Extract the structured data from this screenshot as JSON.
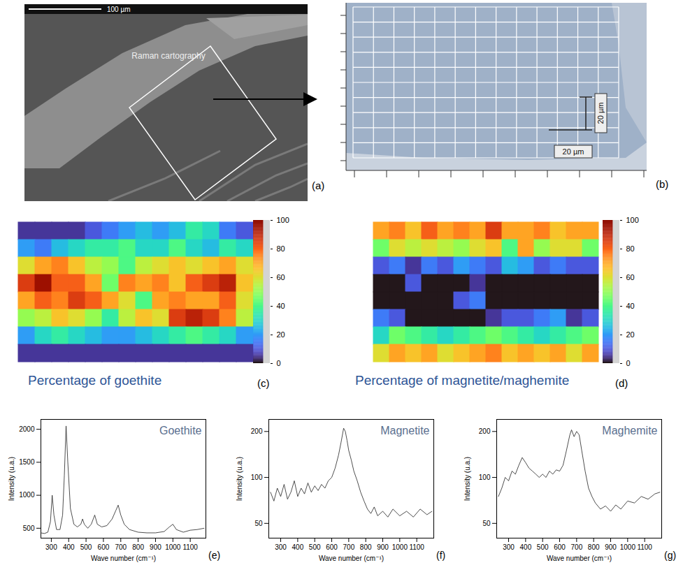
{
  "images": [
    {
      "panel_label": "(a)",
      "scale_bar": "100 µm",
      "annotation": "Raman cartography"
    },
    {
      "panel_label": "(b)",
      "scale_bars": [
        "20 µm",
        "20 µm"
      ]
    }
  ],
  "chart_data": [
    {
      "type": "heatmap",
      "title": "Percentage of goethite",
      "panel_label": "(c)",
      "tick_labels": false,
      "cells": [
        [
          5,
          5,
          5,
          5,
          10,
          15,
          20,
          25,
          20,
          25,
          35,
          30,
          15,
          10
        ],
        [
          20,
          15,
          25,
          30,
          35,
          35,
          40,
          30,
          30,
          40,
          30,
          25,
          35,
          30
        ],
        [
          60,
          70,
          75,
          65,
          55,
          50,
          40,
          55,
          60,
          65,
          60,
          65,
          70,
          60
        ],
        [
          85,
          95,
          80,
          80,
          70,
          45,
          75,
          70,
          75,
          65,
          80,
          85,
          90,
          65
        ],
        [
          70,
          80,
          75,
          85,
          80,
          70,
          60,
          40,
          70,
          75,
          70,
          70,
          80,
          60
        ],
        [
          50,
          55,
          65,
          60,
          50,
          35,
          55,
          65,
          60,
          85,
          90,
          85,
          75,
          55
        ],
        [
          20,
          30,
          35,
          30,
          25,
          20,
          20,
          25,
          30,
          35,
          40,
          35,
          30,
          20
        ],
        [
          5,
          5,
          5,
          5,
          5,
          5,
          5,
          5,
          5,
          5,
          5,
          5,
          5,
          5
        ]
      ],
      "colorbar": {
        "range": [
          0,
          100
        ],
        "ticks": [
          0,
          20,
          40,
          60,
          80,
          100
        ]
      }
    },
    {
      "type": "heatmap",
      "title": "Percentage of magnetite/maghemite",
      "panel_label": "(d)",
      "tick_labels": false,
      "cells": [
        [
          70,
          75,
          65,
          80,
          70,
          75,
          70,
          85,
          70,
          70,
          75,
          65,
          70,
          70
        ],
        [
          45,
          60,
          55,
          60,
          55,
          50,
          60,
          65,
          40,
          70,
          50,
          60,
          60,
          45
        ],
        [
          10,
          15,
          5,
          15,
          10,
          20,
          15,
          10,
          25,
          20,
          10,
          15,
          10,
          10
        ],
        [
          0,
          0,
          10,
          0,
          0,
          0,
          5,
          0,
          0,
          0,
          0,
          0,
          0,
          0
        ],
        [
          0,
          0,
          0,
          0,
          0,
          10,
          15,
          0,
          0,
          0,
          0,
          0,
          0,
          0
        ],
        [
          15,
          10,
          0,
          0,
          0,
          0,
          0,
          5,
          10,
          10,
          15,
          20,
          5,
          10
        ],
        [
          30,
          45,
          40,
          35,
          30,
          35,
          40,
          45,
          40,
          35,
          30,
          35,
          40,
          45
        ],
        [
          60,
          70,
          65,
          70,
          60,
          65,
          70,
          75,
          65,
          70,
          65,
          70,
          60,
          70
        ]
      ],
      "colorbar": {
        "range": [
          0,
          100
        ],
        "ticks": [
          0,
          20,
          40,
          60,
          80,
          100
        ]
      }
    },
    {
      "type": "line",
      "title": "Goethite",
      "panel_label": "(e)",
      "color": "#222222",
      "xlabel": "Wave number (cm⁻¹)",
      "ylabel": "Intensity (u.a.)",
      "xlim": [
        240,
        1190
      ],
      "xticks": [
        300,
        400,
        500,
        600,
        700,
        800,
        900,
        1000,
        1100
      ],
      "ylim": [
        350,
        2150
      ],
      "yticks": [
        500,
        1000,
        1500,
        2000
      ],
      "x": [
        240,
        260,
        280,
        295,
        305,
        315,
        330,
        350,
        365,
        375,
        385,
        395,
        410,
        430,
        450,
        470,
        480,
        490,
        510,
        530,
        550,
        565,
        590,
        620,
        650,
        670,
        685,
        700,
        720,
        750,
        800,
        850,
        900,
        950,
        980,
        1000,
        1020,
        1060,
        1100,
        1140,
        1180
      ],
      "values": [
        430,
        420,
        440,
        600,
        1000,
        700,
        480,
        480,
        700,
        1300,
        2050,
        1500,
        800,
        560,
        520,
        560,
        640,
        560,
        500,
        560,
        700,
        560,
        520,
        540,
        640,
        760,
        850,
        700,
        560,
        480,
        440,
        430,
        430,
        450,
        520,
        560,
        480,
        440,
        470,
        480,
        500
      ]
    },
    {
      "type": "line",
      "title": "Magnetite",
      "panel_label": "(f)",
      "color": "#222222",
      "log": "y",
      "xlabel": "Wave number (cm⁻¹)",
      "ylabel": "Intensity (u.a.)",
      "xlim": [
        230,
        1200
      ],
      "xticks": [
        300,
        400,
        500,
        600,
        700,
        800,
        900,
        1000,
        1100
      ],
      "ylim": [
        40,
        240
      ],
      "yticks": [
        50,
        100,
        200
      ],
      "x": [
        240,
        260,
        280,
        300,
        320,
        340,
        360,
        380,
        400,
        420,
        440,
        460,
        480,
        500,
        520,
        540,
        560,
        580,
        600,
        620,
        640,
        655,
        670,
        680,
        690,
        700,
        715,
        730,
        750,
        770,
        790,
        810,
        830,
        850,
        870,
        900,
        930,
        960,
        1000,
        1040,
        1080,
        1120,
        1160,
        1190
      ],
      "values": [
        80,
        70,
        85,
        75,
        90,
        72,
        80,
        95,
        75,
        85,
        78,
        92,
        80,
        88,
        82,
        90,
        85,
        95,
        100,
        115,
        140,
        170,
        210,
        200,
        175,
        150,
        130,
        110,
        95,
        80,
        70,
        62,
        58,
        64,
        56,
        60,
        55,
        62,
        56,
        60,
        55,
        62,
        57,
        60
      ]
    },
    {
      "type": "line",
      "title": "Maghemite",
      "panel_label": "(g)",
      "color": "#222222",
      "log": "y",
      "xlabel": "Wave number (cm⁻¹)",
      "ylabel": "Intensity (u.a.)",
      "xlim": [
        230,
        1200
      ],
      "xticks": [
        300,
        400,
        500,
        600,
        700,
        800,
        900,
        1000,
        1100
      ],
      "ylim": [
        40,
        240
      ],
      "yticks": [
        50,
        100,
        200
      ],
      "x": [
        240,
        260,
        280,
        300,
        320,
        340,
        360,
        380,
        400,
        420,
        440,
        460,
        480,
        500,
        520,
        540,
        560,
        580,
        600,
        620,
        640,
        660,
        670,
        685,
        700,
        715,
        730,
        750,
        770,
        790,
        810,
        840,
        870,
        900,
        930,
        960,
        1000,
        1040,
        1080,
        1120,
        1160,
        1190
      ],
      "values": [
        75,
        85,
        100,
        95,
        110,
        105,
        120,
        135,
        125,
        115,
        110,
        105,
        100,
        105,
        100,
        110,
        105,
        112,
        110,
        120,
        150,
        190,
        205,
        185,
        200,
        190,
        150,
        110,
        85,
        75,
        68,
        62,
        65,
        60,
        66,
        62,
        70,
        68,
        75,
        72,
        78,
        80
      ]
    }
  ]
}
